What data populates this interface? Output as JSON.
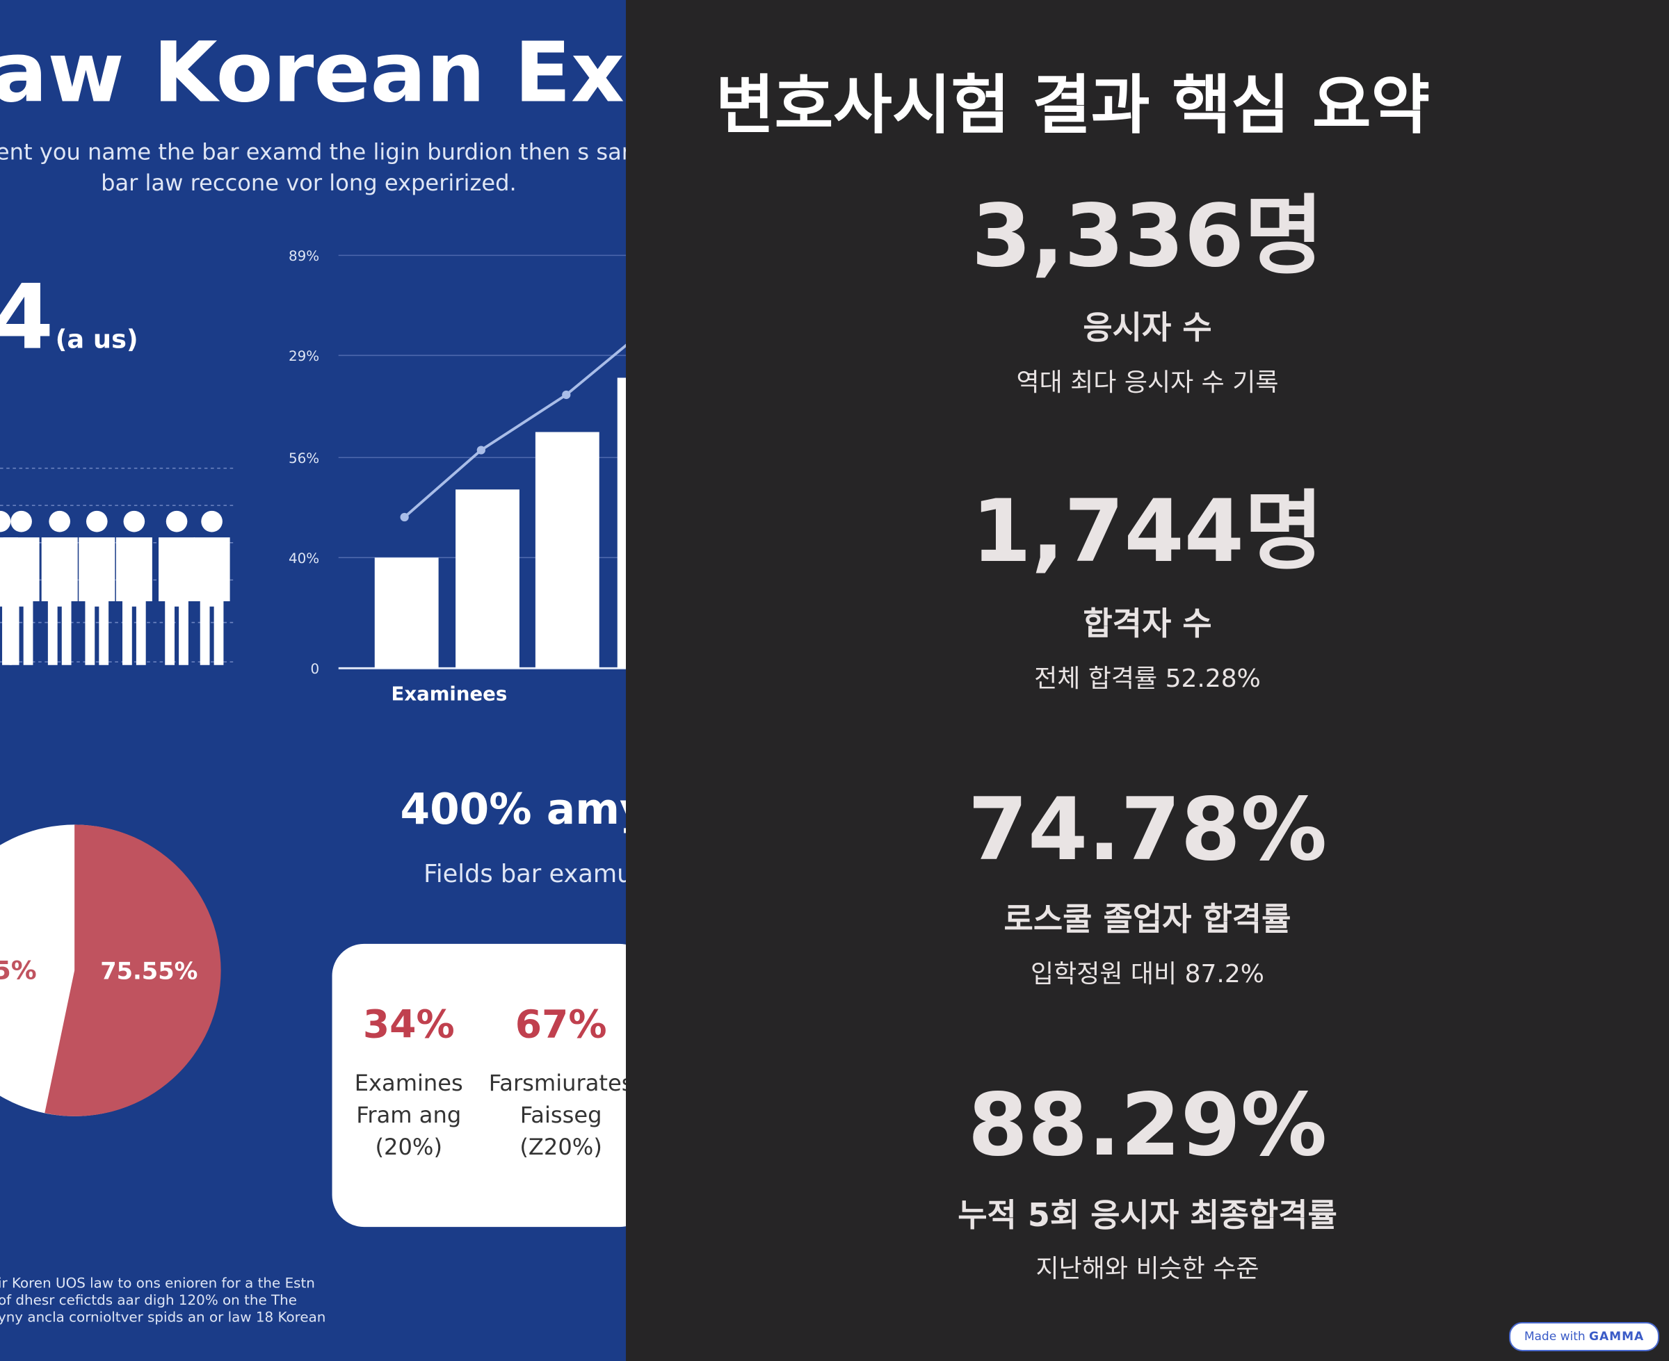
{
  "illustration": {
    "title": "aw Korean Exar",
    "subtitle": [
      "ent you name the bar examd the ligin burdion then s sar",
      "bar law reccone vor long experirized."
    ],
    "big_number": "4",
    "big_number_unit": "(a us)",
    "axis_labels": [
      "89%",
      "29%",
      "56%",
      "40%",
      "0"
    ],
    "axis_caption": "Examinees",
    "headline": "400% amy",
    "headline_sub": "Fields bar examur",
    "pie_labels": [
      "5%",
      "75.55%"
    ],
    "card": [
      {
        "value": "34%",
        "lines": [
          "Examines",
          "Fram ang",
          "(20%)"
        ]
      },
      {
        "value": "67%",
        "lines": [
          "Farsmiurates",
          "Faisseg",
          "(Z20%)"
        ]
      }
    ],
    "footer": [
      "ir Koren UOS law to ons enioren for a the Estn",
      "of dhesr cefictds aar digh 120% on the      The",
      "yny ancla cornioltver spids an or law 18 Korean"
    ]
  },
  "title": "변호사시험 결과 핵심 요약",
  "stats": [
    {
      "value": "3,336명",
      "label": "응시자 수",
      "note": "역대 최다 응시자 수 기록"
    },
    {
      "value": "1,744명",
      "label": "합격자 수",
      "note": "전체 합격률 52.28%"
    },
    {
      "value": "74.78%",
      "label": "로스쿨 졸업자 합격률",
      "note": "입학정원 대비 87.2%"
    },
    {
      "value": "88.29%",
      "label": "누적 5회 응시자 최종합격률",
      "note": "지난해와 비슷한 수준"
    }
  ],
  "badge": {
    "text": "Made with",
    "brand": "GAMMA"
  }
}
